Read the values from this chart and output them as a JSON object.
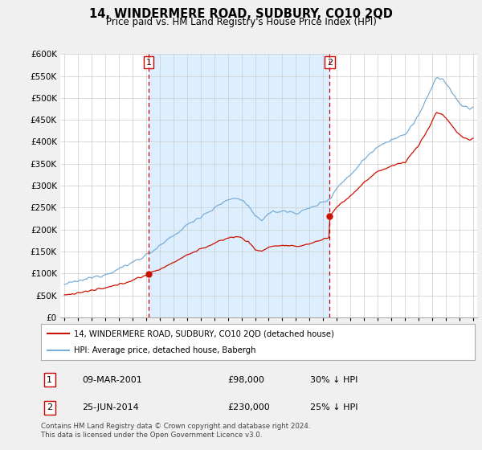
{
  "title": "14, WINDERMERE ROAD, SUDBURY, CO10 2QD",
  "subtitle": "Price paid vs. HM Land Registry's House Price Index (HPI)",
  "ytick_values": [
    0,
    50000,
    100000,
    150000,
    200000,
    250000,
    300000,
    350000,
    400000,
    450000,
    500000,
    550000,
    600000
  ],
  "sale1_price": 98000,
  "sale2_price": 230000,
  "vline1_x": 2001.19,
  "vline2_x": 2014.48,
  "legend_line1": "14, WINDERMERE ROAD, SUDBURY, CO10 2QD (detached house)",
  "legend_line2": "HPI: Average price, detached house, Babergh",
  "table_rows": [
    [
      "1",
      "09-MAR-2001",
      "£98,000",
      "30% ↓ HPI"
    ],
    [
      "2",
      "25-JUN-2014",
      "£230,000",
      "25% ↓ HPI"
    ]
  ],
  "footnote": "Contains HM Land Registry data © Crown copyright and database right 2024.\nThis data is licensed under the Open Government Licence v3.0.",
  "hpi_color": "#7aaed6",
  "price_color": "#cc1100",
  "background_color": "#f0f0f0",
  "plot_bg_color": "#ffffff",
  "shade_color": "#ddeeff",
  "vline_color": "#cc0000",
  "xmin": 1994.7,
  "xmax": 2025.3,
  "ymin": 0,
  "ymax": 600000
}
